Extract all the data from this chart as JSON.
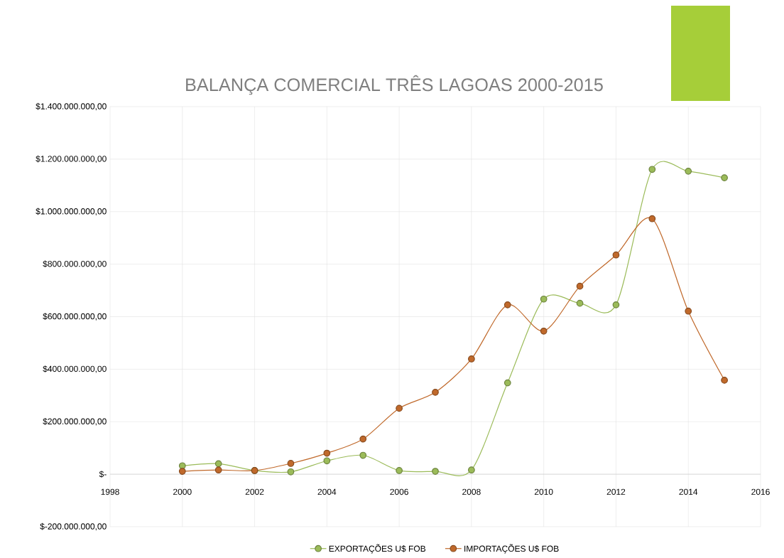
{
  "chart_data": {
    "type": "line",
    "title": "BALANÇA COMERCIAL TRÊS LAGOAS 2000-2015",
    "x": [
      2000,
      2001,
      2002,
      2003,
      2004,
      2005,
      2006,
      2007,
      2008,
      2009,
      2010,
      2011,
      2012,
      2013,
      2014,
      2015
    ],
    "series": [
      {
        "name": "EXPORTAÇÕES U$ FOB",
        "color": "#9bbb59",
        "values": [
          32000000,
          40000000,
          14000000,
          9000000,
          51000000,
          72000000,
          14000000,
          11000000,
          16000000,
          348000000,
          667000000,
          651000000,
          645000000,
          1161000000,
          1154000000,
          1129000000
        ]
      },
      {
        "name": "IMPORTAÇÕES U$ FOB",
        "color": "#c0692b",
        "values": [
          11000000,
          16000000,
          14000000,
          41000000,
          80000000,
          134000000,
          251000000,
          312000000,
          439000000,
          645000000,
          545000000,
          716000000,
          835000000,
          973000000,
          621000000,
          358000000
        ]
      }
    ],
    "xlim": [
      1998,
      2016
    ],
    "xticks": [
      1998,
      2000,
      2002,
      2004,
      2006,
      2008,
      2010,
      2012,
      2014,
      2016
    ],
    "ylim": [
      -200000000,
      1400000000
    ],
    "yticks": [
      {
        "value": -200000000,
        "label": "$-200.000.000,00"
      },
      {
        "value": 0,
        "label": "$-"
      },
      {
        "value": 200000000,
        "label": "$200.000.000,00"
      },
      {
        "value": 400000000,
        "label": "$400.000.000,00"
      },
      {
        "value": 600000000,
        "label": "$600.000.000,00"
      },
      {
        "value": 800000000,
        "label": "$800.000.000,00"
      },
      {
        "value": 1000000000,
        "label": "$1.000.000.000,00"
      },
      {
        "value": 1200000000,
        "label": "$1.200.000.000,00"
      },
      {
        "value": 1400000000,
        "label": "$1.400.000.000,00"
      }
    ],
    "grid": true,
    "legend": "bottom",
    "marker": "circle",
    "line_style": "solid"
  }
}
